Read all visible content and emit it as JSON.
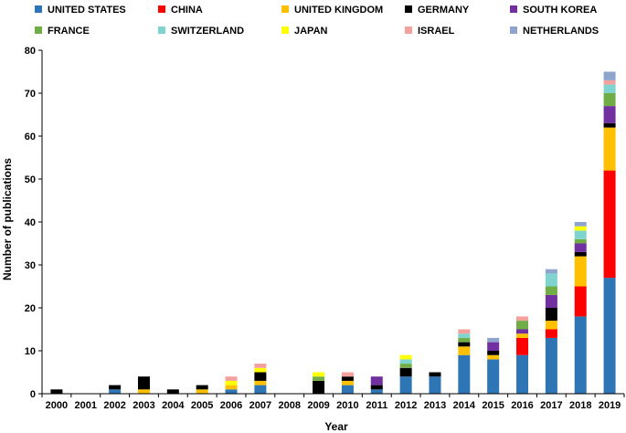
{
  "chart_data": {
    "type": "bar",
    "stacked": true,
    "title": "",
    "xlabel": "Year",
    "ylabel": "Number of publications",
    "ylim": [
      0,
      80
    ],
    "yticks": [
      0,
      10,
      20,
      30,
      40,
      50,
      60,
      70,
      80
    ],
    "grid": false,
    "legend_position": "top",
    "categories": [
      "2000",
      "2001",
      "2002",
      "2003",
      "2004",
      "2005",
      "2006",
      "2007",
      "2008",
      "2009",
      "2010",
      "2011",
      "2012",
      "2013",
      "2014",
      "2015",
      "2016",
      "2017",
      "2018",
      "2019"
    ],
    "series": [
      {
        "name": "UNITED STATES",
        "color": "#2E75B6",
        "values": [
          0,
          0,
          1,
          0,
          0,
          0,
          1,
          2,
          0,
          0,
          2,
          1,
          4,
          4,
          9,
          8,
          9,
          13,
          18,
          27
        ]
      },
      {
        "name": "CHINA",
        "color": "#FF0000",
        "values": [
          0,
          0,
          0,
          0,
          0,
          0,
          0,
          0,
          0,
          0,
          0,
          0,
          0,
          0,
          0,
          0,
          4,
          2,
          7,
          25
        ]
      },
      {
        "name": "UNITED KINGDOM",
        "color": "#FFC000",
        "values": [
          0,
          0,
          0,
          1,
          0,
          1,
          1,
          1,
          0,
          0,
          1,
          0,
          0,
          0,
          2,
          1,
          1,
          2,
          7,
          10
        ]
      },
      {
        "name": "GERMANY",
        "color": "#000000",
        "values": [
          1,
          0,
          1,
          3,
          1,
          1,
          0,
          2,
          0,
          3,
          1,
          1,
          2,
          1,
          1,
          1,
          0,
          3,
          1,
          1
        ]
      },
      {
        "name": "SOUTH KOREA",
        "color": "#7030A0",
        "values": [
          0,
          0,
          0,
          0,
          0,
          0,
          0,
          0,
          0,
          0,
          0,
          2,
          0,
          0,
          0,
          2,
          1,
          3,
          2,
          4
        ]
      },
      {
        "name": "FRANCE",
        "color": "#70AD47",
        "values": [
          0,
          0,
          0,
          0,
          0,
          0,
          0,
          0,
          0,
          1,
          0,
          0,
          1,
          0,
          1,
          0,
          2,
          2,
          1,
          3
        ]
      },
      {
        "name": "SWITZERLAND",
        "color": "#7FD4D0",
        "values": [
          0,
          0,
          0,
          0,
          0,
          0,
          0,
          0,
          0,
          0,
          0,
          0,
          1,
          0,
          1,
          0,
          0,
          3,
          2,
          2
        ]
      },
      {
        "name": "JAPAN",
        "color": "#FFFF00",
        "values": [
          0,
          0,
          0,
          0,
          0,
          0,
          1,
          1,
          0,
          1,
          0,
          0,
          1,
          0,
          0,
          0,
          0,
          0,
          1,
          0
        ]
      },
      {
        "name": "ISRAEL",
        "color": "#F4A09C",
        "values": [
          0,
          0,
          0,
          0,
          0,
          0,
          1,
          1,
          0,
          0,
          1,
          0,
          0,
          0,
          1,
          0,
          1,
          0,
          0,
          1
        ]
      },
      {
        "name": "NETHERLANDS",
        "color": "#8EA4CC",
        "values": [
          0,
          0,
          0,
          0,
          0,
          0,
          0,
          0,
          0,
          0,
          0,
          0,
          0,
          0,
          0,
          1,
          0,
          1,
          1,
          2
        ]
      }
    ]
  }
}
